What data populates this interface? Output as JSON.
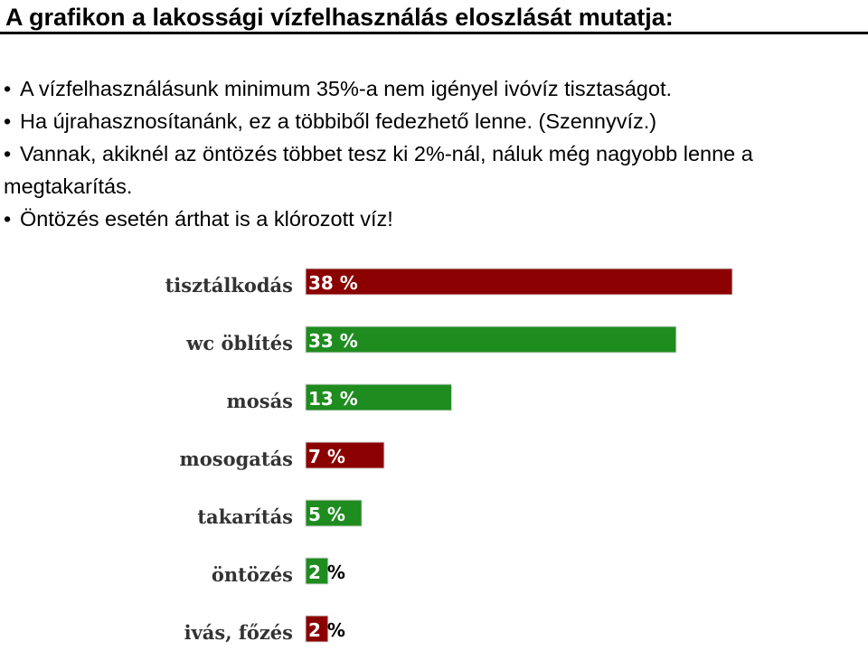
{
  "slide": {
    "title": "A grafikon a lakossági vízfelhasználás eloszlását mutatja:",
    "bullet_glyph": "•",
    "bullets": [
      "A vízfelhasználásunk minimum 35%-a nem igényel ivóvíz tisztaságot.",
      "Ha újrahasznosítanánk, ez a többiből fedezhető lenne. (Szennyvíz.)",
      "Vannak, akiknél az öntözés többet tesz ki 2%-nál, náluk még nagyobb lenne a megtakarítás.",
      "Öntözés esetén árthat is a klórozott víz!"
    ]
  },
  "chart_data": {
    "type": "bar",
    "orientation": "horizontal",
    "categories": [
      "tisztálkodás",
      "wc öblítés",
      "mosás",
      "mosogatás",
      "takarítás",
      "öntözés",
      "ivás, főzés"
    ],
    "values": [
      38,
      33,
      13,
      7,
      5,
      2,
      2
    ],
    "value_labels": [
      "38 %",
      "33 %",
      "13 %",
      "7 %",
      "5 %",
      "2 %",
      "2 %"
    ],
    "bar_colors": [
      "#8b0000",
      "#1e8c1e",
      "#1e8c1e",
      "#8b0000",
      "#1e8c1e",
      "#1e8c1e",
      "#8b0000"
    ],
    "title": "",
    "xlabel": "",
    "ylabel": "",
    "xlim": [
      0,
      38
    ],
    "grid": false,
    "legend": "none"
  }
}
